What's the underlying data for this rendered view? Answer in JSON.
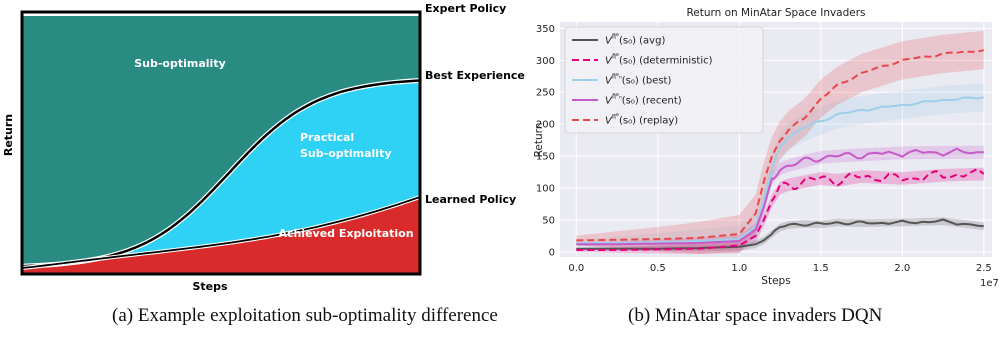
{
  "chart_data": [
    {
      "type": "area",
      "xlabel": "Steps",
      "ylabel": "Return",
      "levels": [
        {
          "name": "Expert Policy"
        },
        {
          "name": "Best Experience"
        },
        {
          "name": "Learned Policy"
        }
      ],
      "regions": [
        {
          "name": "Sub-optimality",
          "color": "#2a8b82"
        },
        {
          "name": "Practical\nSub-optimality",
          "color": "#2fd1f5"
        },
        {
          "name": "Achieved Exploitation",
          "color": "#d92b2b"
        }
      ],
      "caption": "(a)  Example exploitation sub-optimality difference"
    },
    {
      "type": "line",
      "title": "Return on MinAtar Space Invaders",
      "xlabel": "Steps",
      "ylabel": "Return",
      "x_scale_label": "1e7",
      "xlim": [
        -0.1,
        2.55
      ],
      "ylim": [
        -8,
        360
      ],
      "xticks": [
        0.0,
        0.5,
        1.0,
        1.5,
        2.0,
        2.5
      ],
      "xtick_labels": [
        "0.0",
        "0.5",
        "1.0",
        "1.5",
        "2.0",
        "2.5"
      ],
      "yticks": [
        0,
        50,
        100,
        150,
        200,
        250,
        300,
        350
      ],
      "grid": true,
      "legend_position": "top-left",
      "x": [
        0.0,
        0.25,
        0.5,
        0.75,
        1.0,
        1.1,
        1.15,
        1.2,
        1.25,
        1.3,
        1.4,
        1.5,
        1.6,
        1.75,
        2.0,
        2.25,
        2.5
      ],
      "series": [
        {
          "name": "(s₀) (avg)",
          "sup": "π̄ᶿ",
          "color": "#555555",
          "dash": "solid",
          "values": [
            5,
            5,
            5,
            6,
            8,
            12,
            18,
            28,
            38,
            42,
            44,
            43,
            46,
            45,
            46,
            48,
            40
          ]
        },
        {
          "name": "(s₀) (deterministic)",
          "sup": "π̄ᶿ",
          "color": "#e6007e",
          "dash": "dashed",
          "values": [
            3,
            3,
            4,
            5,
            10,
            25,
            50,
            80,
            100,
            105,
            110,
            115,
            112,
            118,
            115,
            120,
            122
          ]
        },
        {
          "name": "(s₀) (best)",
          "sup": "π̄ᶿₙ",
          "color": "#9ecfea",
          "dash": "solid",
          "values": [
            14,
            14,
            15,
            17,
            20,
            40,
            80,
            130,
            165,
            180,
            195,
            205,
            215,
            222,
            230,
            238,
            242
          ]
        },
        {
          "name": "(s₀) (recent)",
          "sup": "π̄ᶿₙ",
          "color": "#c55ac8",
          "dash": "solid",
          "values": [
            12,
            12,
            13,
            14,
            17,
            35,
            70,
            115,
            130,
            135,
            142,
            148,
            150,
            152,
            155,
            156,
            156
          ]
        },
        {
          "name": "(s₀) (replay)",
          "sup": "πᶿ",
          "color": "#e8474a",
          "dash": "dashed",
          "values": [
            18,
            19,
            20,
            22,
            28,
            60,
            110,
            150,
            175,
            190,
            210,
            240,
            260,
            280,
            300,
            310,
            316
          ]
        }
      ],
      "caption": "(b)  MinAtar space invaders DQN"
    }
  ]
}
